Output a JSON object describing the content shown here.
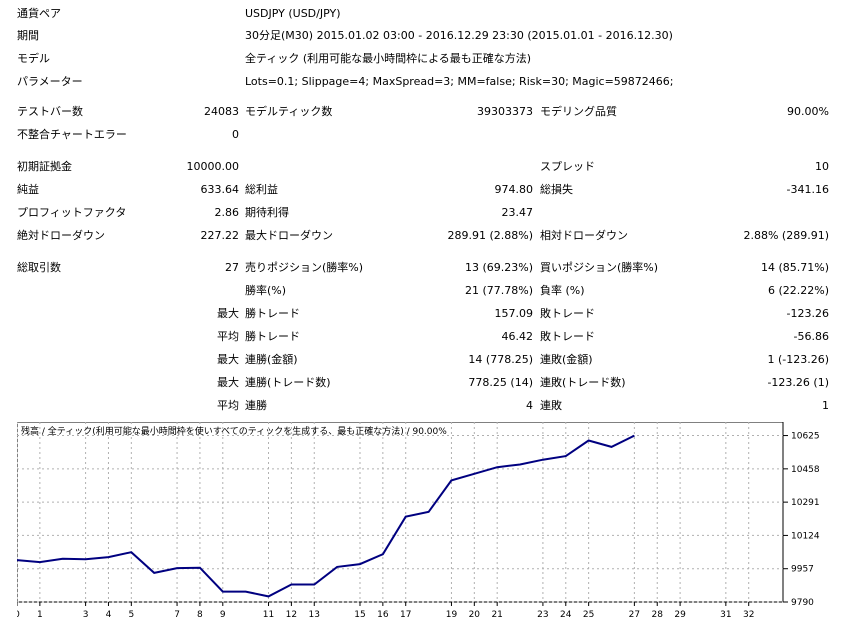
{
  "info": {
    "symbol_label": "通貨ペア",
    "symbol_value": "USDJPY (USD/JPY)",
    "period_label": "期間",
    "period_value": "30分足(M30) 2015.01.02 03:00 - 2016.12.29 23:30 (2015.01.01 - 2016.12.30)",
    "model_label": "モデル",
    "model_value": "全ティック (利用可能な最小時間枠による最も正確な方法)",
    "params_label": "パラメーター",
    "params_value": "Lots=0.1; Slippage=4; MaxSpread=3; MM=false; Risk=30; Magic=59872466;"
  },
  "stats": {
    "bars_label": "テストバー数",
    "bars_value": "24083",
    "ticks_label": "モデルティック数",
    "ticks_value": "39303373",
    "quality_label": "モデリング品質",
    "quality_value": "90.00%",
    "mismatch_label": "不整合チャートエラー",
    "mismatch_value": "0",
    "deposit_label": "初期証拠金",
    "deposit_value": "10000.00",
    "spread_label": "スプレッド",
    "spread_value": "10",
    "net_label": "純益",
    "net_value": "633.64",
    "gross_profit_label": "総利益",
    "gross_profit_value": "974.80",
    "gross_loss_label": "総損失",
    "gross_loss_value": "-341.16",
    "pf_label": "プロフィットファクタ",
    "pf_value": "2.86",
    "expected_label": "期待利得",
    "expected_value": "23.47",
    "abs_dd_label": "絶対ドローダウン",
    "abs_dd_value": "227.22",
    "max_dd_label": "最大ドローダウン",
    "max_dd_value": "289.91 (2.88%)",
    "rel_dd_label": "相対ドローダウン",
    "rel_dd_value": "2.88% (289.91)",
    "total_trades_label": "総取引数",
    "total_trades_value": "27",
    "short_label": "売りポジション(勝率%)",
    "short_value": "13 (69.23%)",
    "long_label": "買いポジション(勝率%)",
    "long_value": "14 (85.71%)",
    "win_rate_label": "勝率(%)",
    "win_rate_value": "21 (77.78%)",
    "loss_rate_label": "負率 (%)",
    "loss_rate_value": "6 (22.22%)",
    "max_word": "最大",
    "avg_word": "平均",
    "largest_win_label": "勝トレード",
    "largest_win_value": "157.09",
    "largest_loss_label": "敗トレード",
    "largest_loss_value": "-123.26",
    "avg_win_label": "勝トレード",
    "avg_win_value": "46.42",
    "avg_loss_label": "敗トレード",
    "avg_loss_value": "-56.86",
    "max_consec_win_label": "連勝(金額)",
    "max_consec_win_value": "14 (778.25)",
    "max_consec_loss_label": "連敗(金額)",
    "max_consec_loss_value": "1 (-123.26)",
    "max_consec_profit_label": "連勝(トレード数)",
    "max_consec_profit_value": "778.25 (14)",
    "max_consec_lossamt_label": "連敗(トレード数)",
    "max_consec_lossamt_value": "-123.26 (1)",
    "avg_consec_win_label": "連勝",
    "avg_consec_win_value": "4",
    "avg_consec_loss_label": "連敗",
    "avg_consec_loss_value": "1"
  },
  "chart_data": {
    "type": "line",
    "title": "残高 / 全ティック(利用可能な最小時間枠を使いすべてのティックを生成する、最も正確な方法) / 90.00%",
    "x_ticks": [
      "0",
      "1",
      "3",
      "4",
      "5",
      "7",
      "8",
      "9",
      "11",
      "12",
      "13",
      "15",
      "16",
      "17",
      "19",
      "20",
      "21",
      "23",
      "24",
      "25",
      "27",
      "28",
      "29",
      "31",
      "32"
    ],
    "x_tick_values": [
      0,
      1,
      3,
      4,
      5,
      7,
      8,
      9,
      11,
      12,
      13,
      15,
      16,
      17,
      19,
      20,
      21,
      23,
      24,
      25,
      27,
      28,
      29,
      31,
      32
    ],
    "y_ticks": [
      "10625",
      "10458",
      "10291",
      "10124",
      "9957",
      "9790"
    ],
    "y_tick_values": [
      10625,
      10458,
      10291,
      10124,
      9957,
      9790
    ],
    "xlim": [
      0,
      33.5
    ],
    "ylim": [
      9790,
      10693
    ],
    "line_color": "#000080",
    "x": [
      0,
      1,
      2,
      3,
      4,
      5,
      6,
      7,
      8,
      9,
      10,
      11,
      12,
      13,
      14,
      15,
      16,
      17,
      18,
      19,
      20,
      21,
      22,
      23,
      24,
      25,
      26,
      27
    ],
    "values": [
      10000,
      9990,
      10007,
      10004,
      10015,
      10040,
      9936,
      9960,
      9962,
      9842,
      9842,
      9818,
      9878,
      9878,
      9966,
      9980,
      10030,
      10218,
      10242,
      10400,
      10433,
      10466,
      10480,
      10504,
      10522,
      10600,
      10568,
      10625
    ],
    "grid": true
  }
}
